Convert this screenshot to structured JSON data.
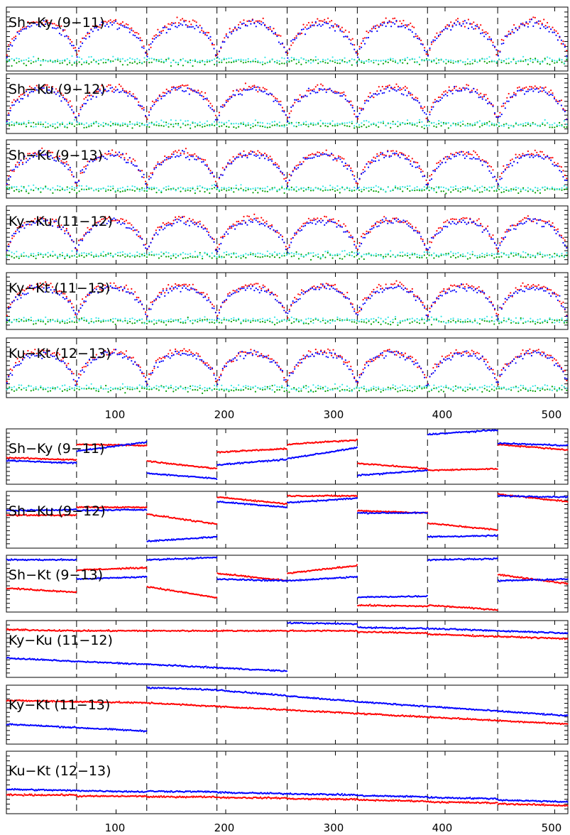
{
  "colors": {
    "series1": "#ff0000",
    "series2": "#0000ff",
    "series3": "#00a000",
    "series4": "#33e6e6",
    "axes": "#000000"
  },
  "x_tick_labels": [
    "100",
    "200",
    "300",
    "400",
    "500"
  ],
  "chart_data": [
    {
      "type": "scatter",
      "group": "top",
      "x_range": [
        0,
        512
      ],
      "y_range": [
        0,
        1
      ],
      "grid": false,
      "dashed_x_lines": [
        64,
        128,
        192,
        256,
        320,
        384,
        448
      ],
      "x_ticks": [
        100,
        200,
        300,
        400,
        500
      ],
      "panel_labels": [
        "Sh−Ky (9−11)",
        "Sh−Ku (9−12)",
        "Sh−Kt (9−13)",
        "Ky−Ku (11−12)",
        "Ky−Kt (11−13)",
        "Ku−Kt (12−13)"
      ],
      "segment_period": 64,
      "series": [
        {
          "color": "series1",
          "shape": "arch",
          "plateau": 0.78,
          "edge": 0.12
        },
        {
          "color": "series2",
          "shape": "arch",
          "plateau": 0.74,
          "edge": 0.1
        },
        {
          "color": "series3",
          "shape": "noise",
          "level": 0.14
        },
        {
          "color": "series4",
          "shape": "noise",
          "level": 0.17
        }
      ]
    },
    {
      "type": "scatter",
      "group": "bottom",
      "x_range": [
        0,
        512
      ],
      "y_range": [
        0,
        1
      ],
      "grid": false,
      "dashed_x_lines": [
        64,
        128,
        192,
        256,
        320,
        384,
        448
      ],
      "x_ticks": [
        100,
        200,
        300,
        400,
        500
      ],
      "panels": [
        {
          "label": "Sh−Ky (9−11)",
          "red": [
            [
              0,
              0.48,
              0.44
            ],
            [
              64,
              0.72,
              0.7
            ],
            [
              128,
              0.42,
              0.28
            ],
            [
              192,
              0.58,
              0.64
            ],
            [
              256,
              0.72,
              0.8
            ],
            [
              320,
              0.38,
              0.28
            ],
            [
              384,
              0.25,
              0.28
            ],
            [
              448,
              0.72,
              0.62
            ]
          ],
          "blue": [
            [
              0,
              0.43,
              0.38
            ],
            [
              64,
              0.6,
              0.76
            ],
            [
              128,
              0.2,
              0.1
            ],
            [
              192,
              0.35,
              0.45
            ],
            [
              256,
              0.46,
              0.66
            ],
            [
              320,
              0.16,
              0.25
            ],
            [
              384,
              0.9,
              0.98
            ],
            [
              448,
              0.74,
              0.7
            ]
          ]
        },
        {
          "label": "Sh−Ku (9−12)",
          "red": [
            [
              0,
              0.58,
              0.58
            ],
            [
              64,
              0.72,
              0.72
            ],
            [
              128,
              0.6,
              0.42
            ],
            [
              192,
              0.9,
              0.78
            ],
            [
              256,
              0.92,
              0.92
            ],
            [
              320,
              0.66,
              0.62
            ],
            [
              384,
              0.44,
              0.32
            ],
            [
              448,
              0.95,
              0.82
            ]
          ],
          "blue": [
            [
              0,
              0.66,
              0.68
            ],
            [
              64,
              0.66,
              0.68
            ],
            [
              128,
              0.12,
              0.2
            ],
            [
              192,
              0.82,
              0.72
            ],
            [
              256,
              0.8,
              0.88
            ],
            [
              320,
              0.62,
              0.62
            ],
            [
              384,
              0.2,
              0.22
            ],
            [
              448,
              0.92,
              0.9
            ]
          ]
        },
        {
          "label": "Sh−Kt (9−13)",
          "red": [
            [
              0,
              0.42,
              0.35
            ],
            [
              64,
              0.74,
              0.78
            ],
            [
              128,
              0.45,
              0.25
            ],
            [
              192,
              0.68,
              0.55
            ],
            [
              256,
              0.68,
              0.82
            ],
            [
              320,
              0.12,
              0.1
            ],
            [
              384,
              0.12,
              0.04
            ],
            [
              448,
              0.66,
              0.5
            ]
          ],
          "blue": [
            [
              0,
              0.92,
              0.92
            ],
            [
              64,
              0.58,
              0.62
            ],
            [
              128,
              0.92,
              0.96
            ],
            [
              192,
              0.58,
              0.55
            ],
            [
              256,
              0.55,
              0.62
            ],
            [
              320,
              0.26,
              0.28
            ],
            [
              384,
              0.92,
              0.94
            ],
            [
              448,
              0.55,
              0.58
            ]
          ]
        },
        {
          "label": "Ky−Ku (11−12)",
          "red": [
            [
              0,
              0.84,
              0.82
            ],
            [
              64,
              0.82,
              0.82
            ],
            [
              128,
              0.82,
              0.82
            ],
            [
              192,
              0.82,
              0.82
            ],
            [
              256,
              0.82,
              0.82
            ],
            [
              320,
              0.8,
              0.78
            ],
            [
              384,
              0.76,
              0.72
            ],
            [
              448,
              0.72,
              0.68
            ]
          ],
          "blue": [
            [
              0,
              0.34,
              0.28
            ],
            [
              64,
              0.28,
              0.23
            ],
            [
              128,
              0.23,
              0.17
            ],
            [
              192,
              0.17,
              0.11
            ],
            [
              256,
              0.96,
              0.94
            ],
            [
              320,
              0.88,
              0.86
            ],
            [
              384,
              0.86,
              0.82
            ],
            [
              448,
              0.82,
              0.78
            ]
          ]
        },
        {
          "label": "Ky−Kt (11−13)",
          "red": [
            [
              0,
              0.74,
              0.72
            ],
            [
              64,
              0.72,
              0.7
            ],
            [
              128,
              0.7,
              0.64
            ],
            [
              192,
              0.64,
              0.58
            ],
            [
              256,
              0.58,
              0.52
            ],
            [
              320,
              0.52,
              0.46
            ],
            [
              384,
              0.46,
              0.4
            ],
            [
              448,
              0.4,
              0.34
            ]
          ],
          "blue": [
            [
              0,
              0.34,
              0.28
            ],
            [
              64,
              0.28,
              0.22
            ],
            [
              128,
              0.96,
              0.92
            ],
            [
              192,
              0.92,
              0.82
            ],
            [
              256,
              0.82,
              0.72
            ],
            [
              320,
              0.72,
              0.64
            ],
            [
              384,
              0.64,
              0.56
            ],
            [
              448,
              0.56,
              0.48
            ]
          ]
        },
        {
          "label": "Ku−Kt (12−13)",
          "red": [
            [
              0,
              0.3,
              0.3
            ],
            [
              64,
              0.28,
              0.28
            ],
            [
              128,
              0.27,
              0.27
            ],
            [
              192,
              0.26,
              0.25
            ],
            [
              256,
              0.24,
              0.23
            ],
            [
              320,
              0.22,
              0.2
            ],
            [
              384,
              0.19,
              0.17
            ],
            [
              448,
              0.16,
              0.13
            ]
          ],
          "blue": [
            [
              0,
              0.39,
              0.37
            ],
            [
              64,
              0.37,
              0.35
            ],
            [
              128,
              0.36,
              0.35
            ],
            [
              192,
              0.34,
              0.32
            ],
            [
              256,
              0.32,
              0.3
            ],
            [
              320,
              0.29,
              0.27
            ],
            [
              384,
              0.26,
              0.24
            ],
            [
              448,
              0.22,
              0.19
            ]
          ]
        }
      ]
    }
  ]
}
